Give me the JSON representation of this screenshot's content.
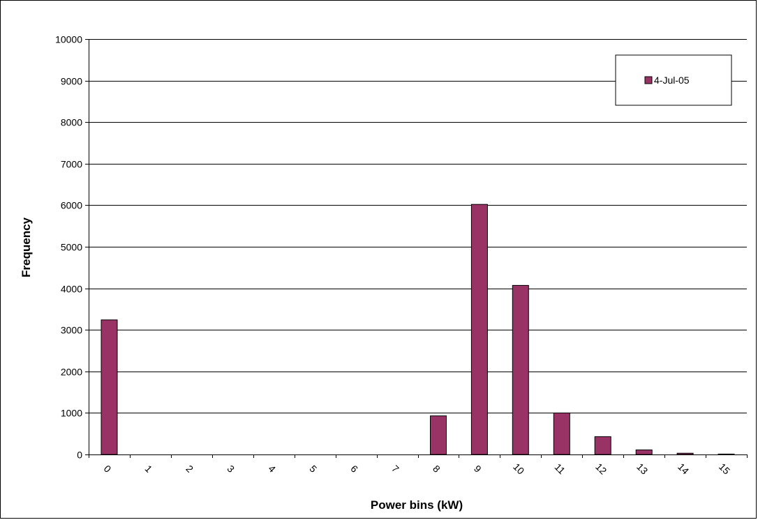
{
  "chart_data": {
    "type": "bar",
    "title": "",
    "xlabel": "Power bins (kW)",
    "ylabel": "Frequency",
    "categories": [
      "0",
      "1",
      "2",
      "3",
      "4",
      "5",
      "6",
      "7",
      "8",
      "9",
      "10",
      "11",
      "12",
      "13",
      "14",
      "15"
    ],
    "series": [
      {
        "name": "4-Jul-05",
        "color": "#993366",
        "values": [
          3240,
          0,
          0,
          0,
          0,
          0,
          0,
          0,
          930,
          6020,
          4070,
          1000,
          430,
          110,
          30,
          10
        ]
      }
    ],
    "ylim": [
      0,
      10000
    ],
    "yticks": [
      0,
      1000,
      2000,
      3000,
      4000,
      5000,
      6000,
      7000,
      8000,
      9000,
      10000
    ],
    "grid": true,
    "legend_position": "top-right"
  }
}
